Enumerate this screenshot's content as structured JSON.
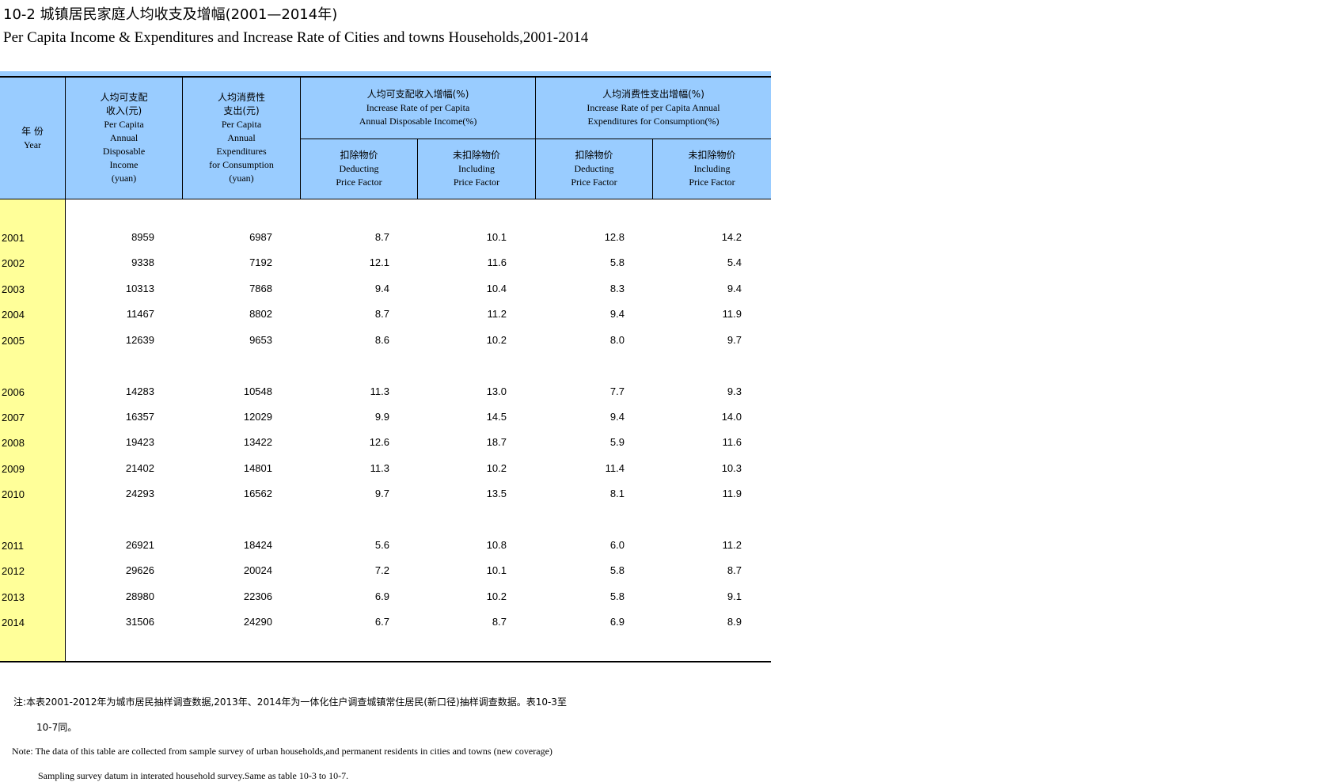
{
  "title": {
    "cn": "10-2  城镇居民家庭人均收支及增幅(2001—2014年)",
    "en": "Per Capita Income & Expenditures and Increase Rate of Cities and towns Households,2001-2014"
  },
  "header": {
    "year": {
      "cn": "年 份",
      "en": "Year"
    },
    "income": {
      "cn": [
        "人均可支配",
        "收入(元)"
      ],
      "en": [
        "Per Capita",
        "Annual",
        "Disposable",
        "Income",
        "(yuan)"
      ]
    },
    "expend": {
      "cn": [
        "人均消费性",
        "支出(元)"
      ],
      "en": [
        "Per Capita",
        "Annual",
        "Expenditures",
        "for Consumption",
        "(yuan)"
      ]
    },
    "income_rate": {
      "cn": "人均可支配收入增幅(%)",
      "en": [
        "Increase Rate of per Capita",
        "Annual Disposable Income(%)"
      ]
    },
    "expend_rate": {
      "cn": "人均消费性支出增幅(%)",
      "en": [
        "Increase Rate of per Capita Annual",
        "Expenditures for Consumption(%)"
      ]
    },
    "deduct": {
      "cn": "扣除物价",
      "en": [
        "Deducting",
        "Price Factor"
      ]
    },
    "include": {
      "cn": "未扣除物价",
      "en": [
        "Including",
        "Price Factor"
      ]
    }
  },
  "rows": [
    [
      "2001",
      "8959",
      "6987",
      "8.7",
      "10.1",
      "12.8",
      "14.2"
    ],
    [
      "2002",
      "9338",
      "7192",
      "12.1",
      "11.6",
      "5.8",
      "5.4"
    ],
    [
      "2003",
      "10313",
      "7868",
      "9.4",
      "10.4",
      "8.3",
      "9.4"
    ],
    [
      "2004",
      "11467",
      "8802",
      "8.7",
      "11.2",
      "9.4",
      "11.9"
    ],
    [
      "2005",
      "12639",
      "9653",
      "8.6",
      "10.2",
      "8.0",
      "9.7"
    ],
    [
      "2006",
      "14283",
      "10548",
      "11.3",
      "13.0",
      "7.7",
      "9.3"
    ],
    [
      "2007",
      "16357",
      "12029",
      "9.9",
      "14.5",
      "9.4",
      "14.0"
    ],
    [
      "2008",
      "19423",
      "13422",
      "12.6",
      "18.7",
      "5.9",
      "11.6"
    ],
    [
      "2009",
      "21402",
      "14801",
      "11.3",
      "10.2",
      "11.4",
      "10.3"
    ],
    [
      "2010",
      "24293",
      "16562",
      "9.7",
      "13.5",
      "8.1",
      "11.9"
    ],
    [
      "2011",
      "26921",
      "18424",
      "5.6",
      "10.8",
      "6.0",
      "11.2"
    ],
    [
      "2012",
      "29626",
      "20024",
      "7.2",
      "10.1",
      "5.8",
      "8.7"
    ],
    [
      "2013",
      "28980",
      "22306",
      "6.9",
      "10.2",
      "5.8",
      "9.1"
    ],
    [
      "2014",
      "31506",
      "24290",
      "6.7",
      "8.7",
      "6.9",
      "8.9"
    ]
  ],
  "notes": {
    "cn1": "注:本表2001-2012年为城市居民抽样调查数据,2013年、2014年为一体化住户调查城镇常住居民(新口径)抽样调查数据。表10-3至",
    "cn2": "10-7同。",
    "en1": "Note: The data of this table are collected from sample survey of urban households,and permanent residents in cities and towns   (new coverage)",
    "en2": "Sampling survey  datum in interated household survey.Same as table 10-3 to 10-7."
  },
  "colors": {
    "header_bg": "#99ccff",
    "year_bg": "#ffff99"
  }
}
